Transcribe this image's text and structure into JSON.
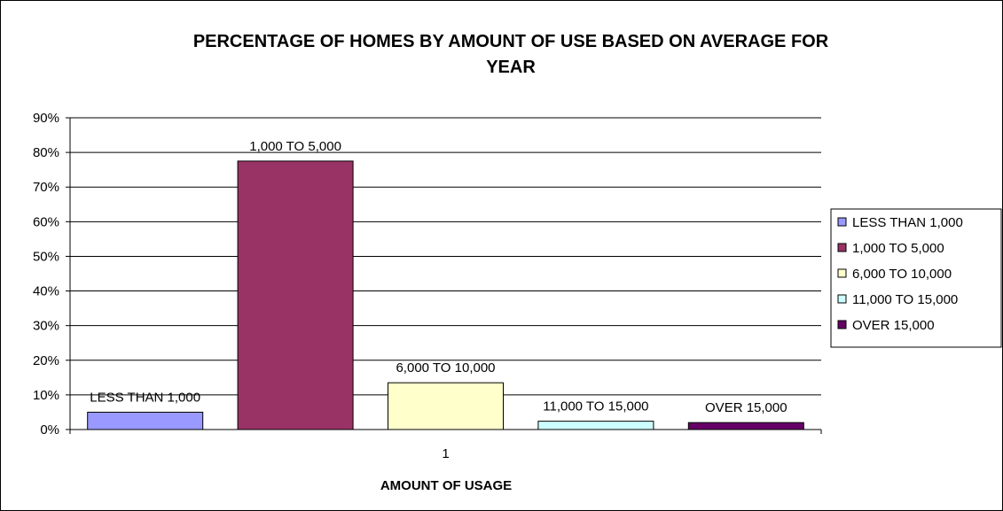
{
  "chart_data": {
    "type": "bar",
    "title_lines": [
      "PERCENTAGE OF HOMES BY AMOUNT OF USE BASED ON AVERAGE FOR",
      "YEAR"
    ],
    "xlabel": "AMOUNT OF USAGE",
    "ylabel": "",
    "categories": [
      "1"
    ],
    "series": [
      {
        "name": "LESS THAN 1,000",
        "values": [
          5
        ],
        "data_label": "LESS THAN 1,000",
        "color": "#9999ff"
      },
      {
        "name": "1,000 TO 5,000",
        "values": [
          77.5
        ],
        "data_label": "1,000 TO 5,000",
        "color": "#993366"
      },
      {
        "name": "6,000 TO 10,000",
        "values": [
          13.5
        ],
        "data_label": "6,000 TO 10,000",
        "color": "#ffffcc"
      },
      {
        "name": "11,000 TO 15,000",
        "values": [
          2.4
        ],
        "data_label": "11,000 TO 15,000",
        "color": "#ccffff"
      },
      {
        "name": "OVER 15,000",
        "values": [
          2
        ],
        "data_label": "OVER 15,000",
        "color": "#660066"
      }
    ],
    "ylim": [
      0,
      90
    ],
    "yticks": [
      0,
      10,
      20,
      30,
      40,
      50,
      60,
      70,
      80,
      90
    ],
    "ytick_labels": [
      "0%",
      "10%",
      "20%",
      "30%",
      "40%",
      "50%",
      "60%",
      "70%",
      "80%",
      "90%"
    ],
    "grid": true,
    "legend_position": "right",
    "colors": {
      "gridline": "#000000",
      "axis": "#000000",
      "background": "#ffffff"
    }
  }
}
